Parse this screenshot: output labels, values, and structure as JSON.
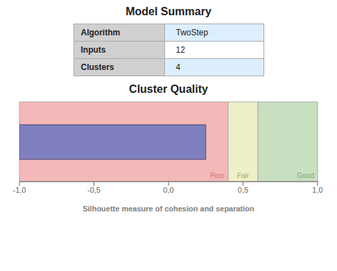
{
  "chart_data": [
    {
      "type": "table",
      "title": "Model Summary",
      "rows": [
        {
          "label": "Algorithm",
          "value": "TwoStep"
        },
        {
          "label": "Inputs",
          "value": "12"
        },
        {
          "label": "Clusters",
          "value": "4"
        }
      ],
      "colors": [
        "#ddeeff",
        "#ffffff",
        "#ddeeff"
      ]
    },
    {
      "type": "bar",
      "orientation": "horizontal",
      "title": "Cluster Quality",
      "values": [
        0.25
      ],
      "color": "#8080c0",
      "xlim": [
        -1.0,
        1.0
      ],
      "xticks": [
        {
          "value": -1.0,
          "label": "-1,0"
        },
        {
          "value": -0.5,
          "label": "-0,5"
        },
        {
          "value": 0.0,
          "label": "0,0"
        },
        {
          "value": 0.5,
          "label": "0,5"
        },
        {
          "value": 1.0,
          "label": "1,0"
        }
      ],
      "xlabel": "Silhouette measure of cohesion and separation",
      "bands": [
        {
          "name": "Poor",
          "range": [
            -1.0,
            0.4
          ],
          "color": "#f4b8b8"
        },
        {
          "name": "Fair",
          "range": [
            0.4,
            0.6
          ],
          "color": "#efefc8"
        },
        {
          "name": "Good",
          "range": [
            0.6,
            1.0
          ],
          "color": "#c8dfc0"
        }
      ]
    }
  ]
}
